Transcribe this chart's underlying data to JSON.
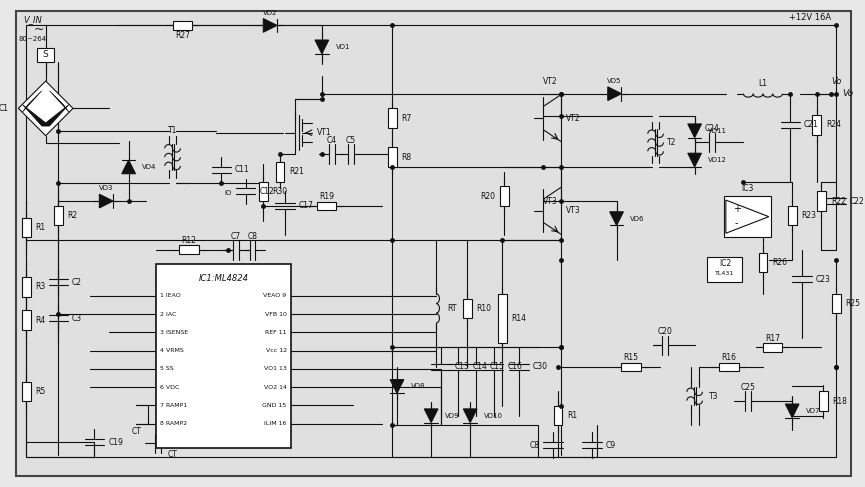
{
  "bg_color": "#e8e8e8",
  "line_color": "#111111",
  "text_color": "#111111",
  "ic1_pins_left": [
    "1 IEAO",
    "2 IAC",
    "3 ISENSE",
    "4 VRMS",
    "5 SS",
    "6 VDC",
    "7 RAMP1",
    "8 RAMP2"
  ],
  "ic1_pins_right": [
    "VEAO 9",
    "VFB 10",
    "REF 11",
    "Vcc 12",
    "VO1 13",
    "VO2 14",
    "GND 15",
    "ILIM 16"
  ],
  "input_label": "V_IN",
  "input_range": "80~264",
  "output_label": "+12V 16A",
  "vo_label": "Vo",
  "ic1_label": "IC1:ML4824",
  "ic2_label1": "IC2",
  "ic2_label2": "TL431",
  "ic3_label": "IC3"
}
